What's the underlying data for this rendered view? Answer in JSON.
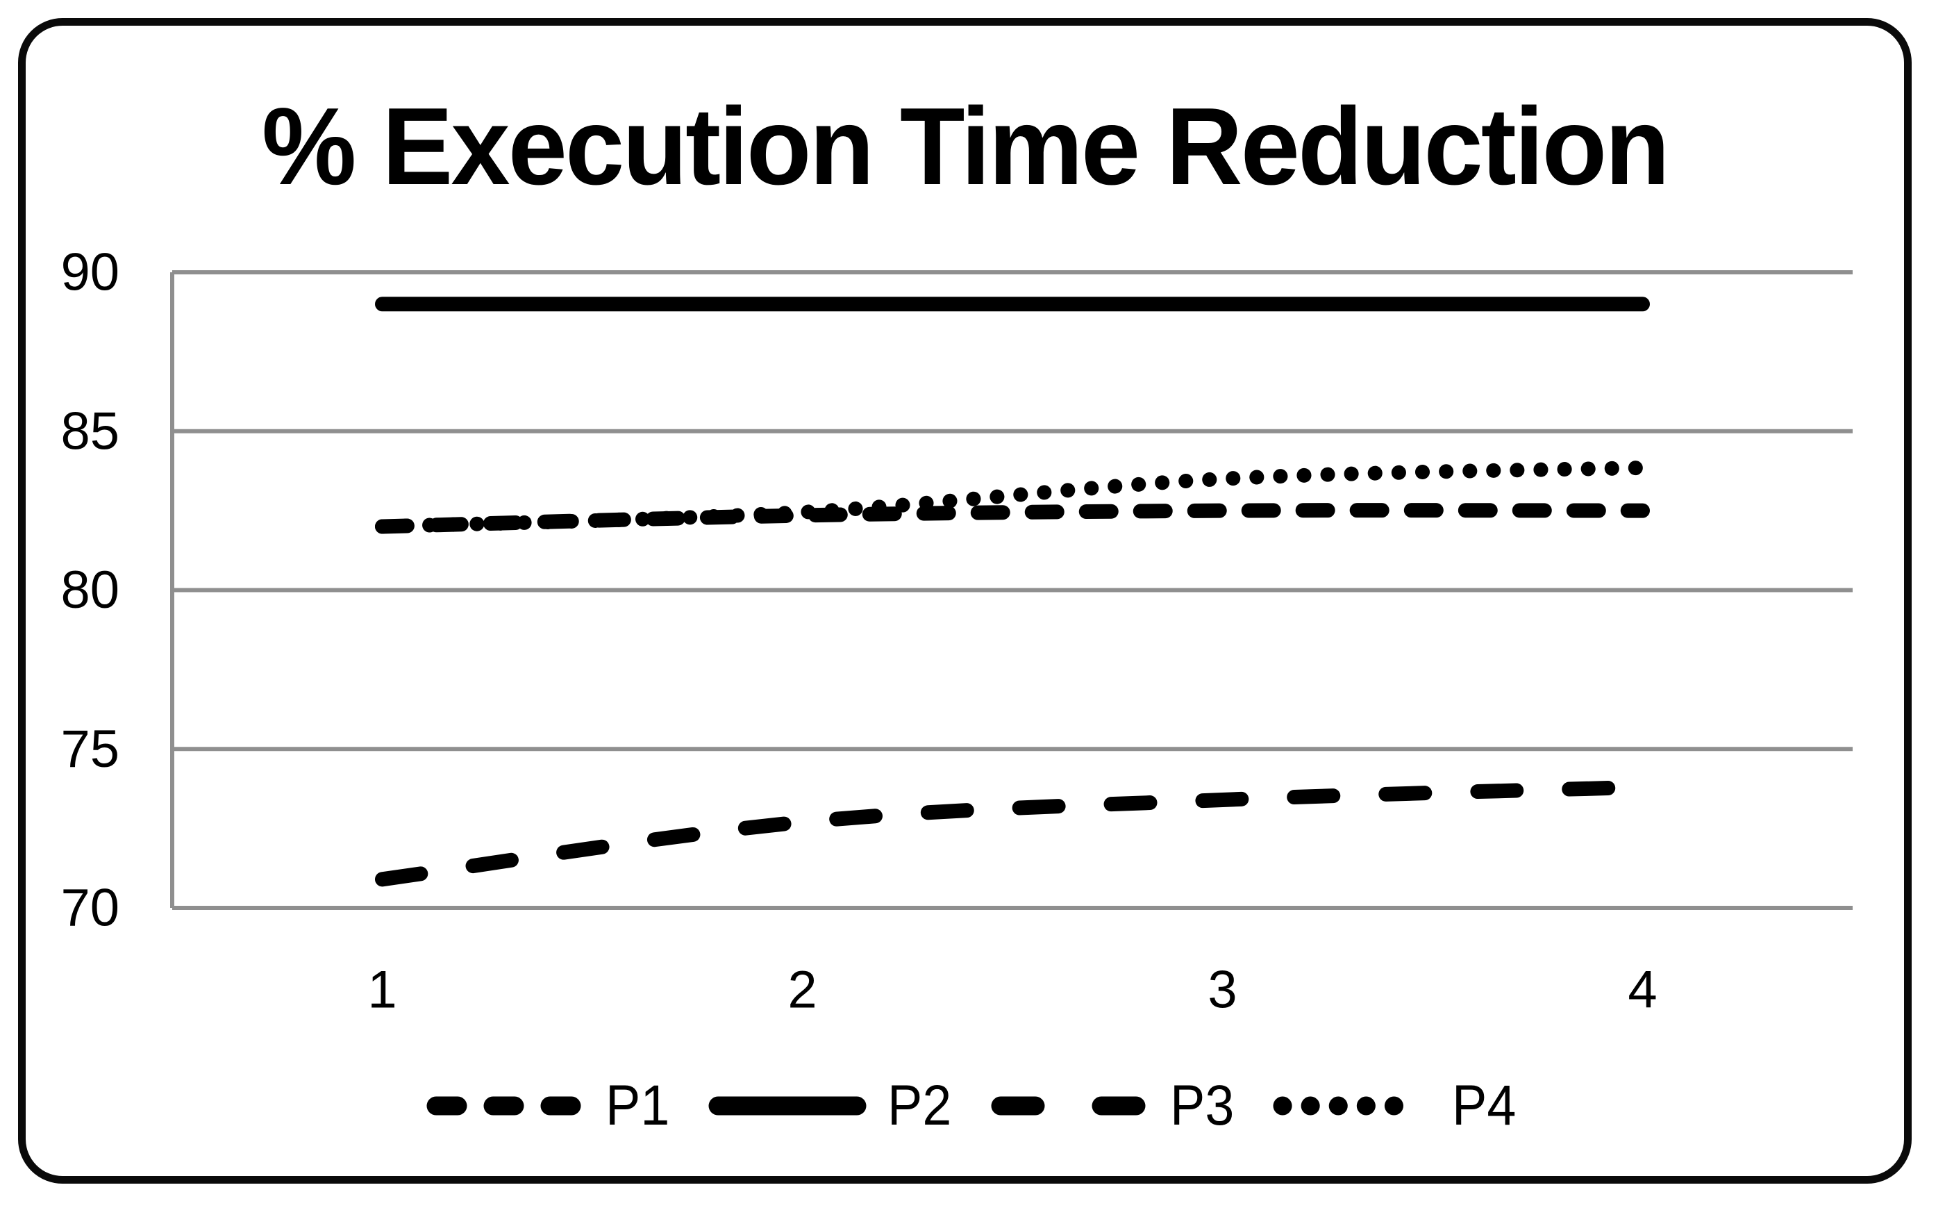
{
  "chart_data": {
    "type": "line",
    "title": "% Execution Time Reduction",
    "xlabel": "",
    "ylabel": "",
    "x": [
      1,
      2,
      3,
      4
    ],
    "x_tick_labels": [
      "1",
      "2",
      "3",
      "4"
    ],
    "y_ticks": [
      70,
      75,
      80,
      85,
      90
    ],
    "y_tick_labels": [
      "70",
      "75",
      "80",
      "85",
      "90"
    ],
    "ylim": [
      70,
      90
    ],
    "grid": "horizontal-only",
    "legend_position": "bottom",
    "colors": {
      "line": "#000000",
      "grid": "#8f8f8f",
      "background": "#ffffff",
      "border": "#0a0a0a"
    },
    "series": [
      {
        "name": "P1",
        "style": "dash",
        "values": [
          82.0,
          82.35,
          82.5,
          82.5
        ]
      },
      {
        "name": "P2",
        "style": "solid",
        "values": [
          89.0,
          89.0,
          89.0,
          89.0
        ]
      },
      {
        "name": "P3",
        "style": "long-dash",
        "values": [
          70.9,
          72.7,
          73.4,
          73.8
        ]
      },
      {
        "name": "P4",
        "style": "dot",
        "values": [
          82.0,
          82.45,
          83.5,
          83.85
        ]
      }
    ]
  }
}
